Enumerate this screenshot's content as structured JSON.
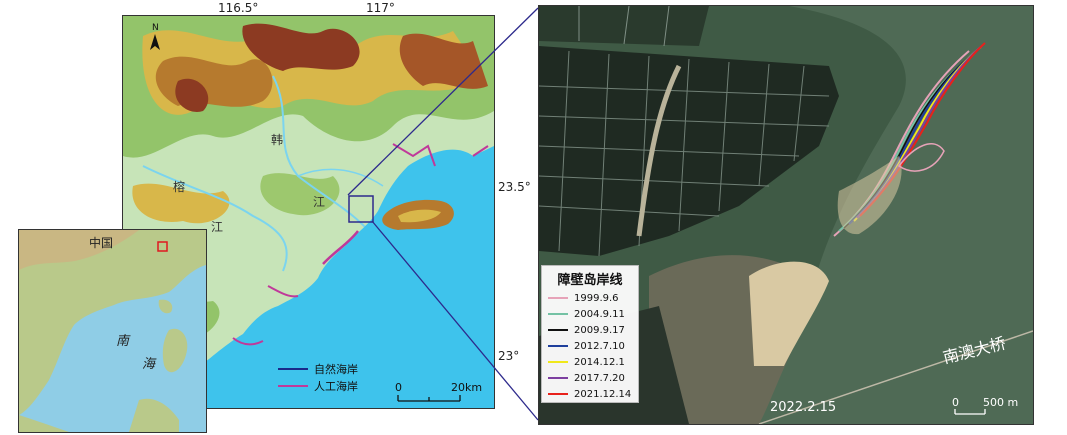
{
  "main_map": {
    "top_ticks": [
      "116.5°",
      "117°"
    ],
    "right_ticks": [
      "23.5°",
      "23°"
    ],
    "river_chars": [
      "榕",
      "江",
      "韩",
      "江"
    ],
    "legend": [
      {
        "label": "自然海岸",
        "color": "#1a2a8a"
      },
      {
        "label": "人工海岸",
        "color": "#c0399a"
      }
    ],
    "scale": {
      "zero": "0",
      "end": "20km"
    },
    "north": "N"
  },
  "inset_map": {
    "country_label": "中国",
    "sea_chars": [
      "南",
      "海"
    ],
    "box_color": "#e0191f"
  },
  "satellite": {
    "legend_title": "障壁岛岸线",
    "legend": [
      {
        "label": "1999.9.6",
        "color": "#e6a3b8"
      },
      {
        "label": "2004.9.11",
        "color": "#74c2a4"
      },
      {
        "label": "2009.9.17",
        "color": "#111111"
      },
      {
        "label": "2012.7.10",
        "color": "#1f3f9c"
      },
      {
        "label": "2014.12.1",
        "color": "#f0e81a"
      },
      {
        "label": "2017.7.20",
        "color": "#7d3fa0"
      },
      {
        "label": "2021.12.14",
        "color": "#e8211b"
      }
    ],
    "date": "2022.2.15",
    "bridge_label": "南澳大桥",
    "scale": {
      "zero": "0",
      "end": "500 m"
    }
  },
  "colors": {
    "sea": "#3ec3ec",
    "lowland": "#c7e4b8",
    "connector": "#2d2a8c"
  }
}
